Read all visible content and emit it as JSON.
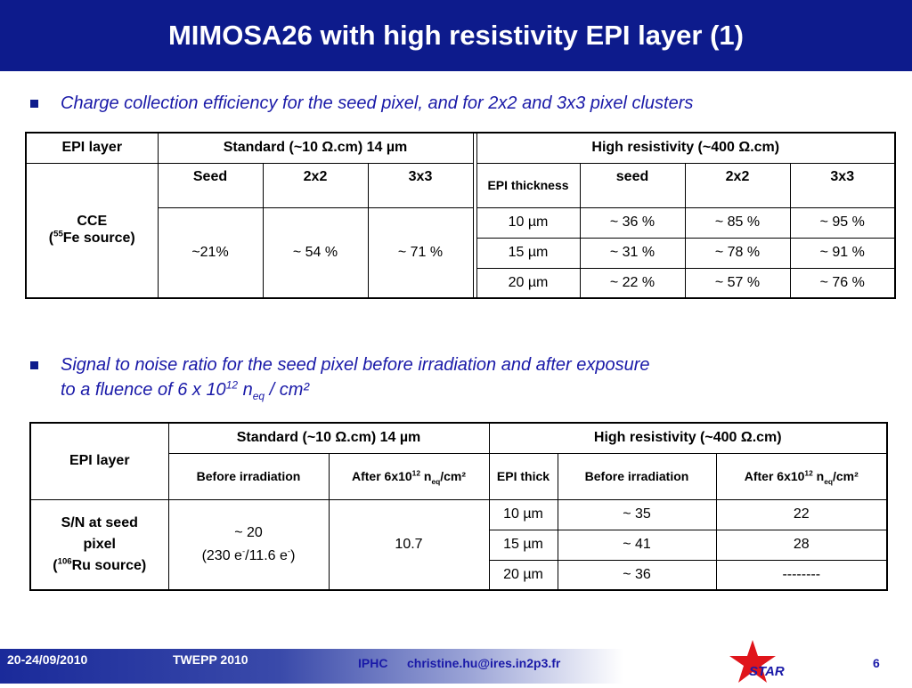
{
  "title": "MIMOSA26 with high resistivity EPI layer (1)",
  "bullet1": "Charge collection efficiency for the seed pixel, and for 2x2 and 3x3 pixel clusters",
  "bullet2_line1": "Signal to noise ratio for the seed pixel before irradiation and after exposure",
  "bullet2_line2_pre": "to a fluence of 6 x 10",
  "bullet2_exp": "12",
  "bullet2_n": " n",
  "bullet2_sub": "eq",
  "bullet2_post": " / cm²",
  "table1": {
    "epi_layer": "EPI layer",
    "standard": "Standard (~10 Ω.cm) 14 µm",
    "high": "High resistivity (~400 Ω.cm)",
    "cols_std": [
      "Seed",
      "2x2",
      "3x3"
    ],
    "epi_thickness": "EPI thickness",
    "cols_high": [
      "seed",
      "2x2",
      "3x3"
    ],
    "cce": "CCE",
    "source_pre": "(",
    "source_sup": "55",
    "source_post": "Fe source)",
    "std_values": [
      "~21%",
      "~ 54 %",
      "~ 71 %"
    ],
    "rows": [
      {
        "epi": "10 µm",
        "seed": "~ 36 %",
        "c2": "~ 85 %",
        "c3": "~ 95 %"
      },
      {
        "epi": "15 µm",
        "seed": "~ 31 %",
        "c2": "~ 78 %",
        "c3": "~ 91 %"
      },
      {
        "epi": "20 µm",
        "seed": "~ 22 %",
        "c2": "~ 57 %",
        "c3": "~ 76 %"
      }
    ]
  },
  "table2": {
    "epi_layer": "EPI layer",
    "standard": "Standard (~10 Ω.cm) 14 µm",
    "high": "High resistivity (~400 Ω.cm)",
    "before": "Before irradiation",
    "after_pre": "After 6x10",
    "after_sup": "12",
    "after_n": " n",
    "after_sub": "eq",
    "after_post": "/cm²",
    "epi_thick": "EPI thick",
    "sn_line1": "S/N at seed",
    "sn_line2": "pixel",
    "sn_src_pre": "(",
    "sn_src_sup": "106",
    "sn_src_post": "Ru source)",
    "std_before_1": "~ 20",
    "std_before_2_pre": "(230 e",
    "std_before_2_sup1": "-",
    "std_before_2_mid": "/11.6 e",
    "std_before_2_sup2": "-",
    "std_before_2_post": ")",
    "std_after": "10.7",
    "rows": [
      {
        "epi": "10 µm",
        "before": "~ 35",
        "after": "22"
      },
      {
        "epi": "15 µm",
        "before": "~ 41",
        "after": "28"
      },
      {
        "epi": "20 µm",
        "before": "~ 36",
        "after": "--------"
      }
    ]
  },
  "footer": {
    "date": "20-24/09/2010",
    "conference": "TWEPP 2010",
    "lab": "IPHC",
    "email": "christine.hu@ires.in2p3.fr",
    "page": "6",
    "logo_text": "STAR"
  },
  "colors": {
    "title_bg": "#0d1b8c",
    "bullet_text": "#1a1aa8",
    "star": "#e0151b"
  }
}
